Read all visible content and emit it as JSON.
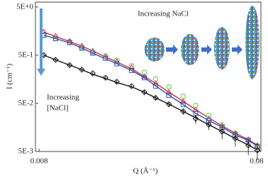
{
  "chart_data": {
    "type": "scatter",
    "log_x": true,
    "log_y": true,
    "y_label": "I (cm⁻¹)",
    "x_label": "Q (Å⁻¹)",
    "annotations": {
      "top": "Increasing NaCl",
      "left": [
        "Increasing",
        "[NaCl]"
      ]
    },
    "xlim": [
      0.0077,
      0.081
    ],
    "ylim": [
      0.005,
      6.3
    ],
    "xticks": [
      0.008,
      0.08
    ],
    "yticks": [
      {
        "value": 5,
        "label": "5E+0"
      },
      {
        "value": 0.5,
        "label": "5E-1"
      },
      {
        "value": 0.05,
        "label": "5E-2"
      },
      {
        "value": 0.005,
        "label": "5E-3"
      }
    ],
    "x": [
      0.0084,
      0.0095,
      0.011,
      0.0125,
      0.014,
      0.016,
      0.018,
      0.021,
      0.024,
      0.027,
      0.031,
      0.036,
      0.041,
      0.047,
      0.054,
      0.062,
      0.071,
      0.078
    ],
    "series": [
      {
        "color": "#d62b2b",
        "marker": "triangle",
        "values": [
          1.53,
          1.25,
          0.98,
          0.78,
          0.61,
          0.47,
          0.37,
          0.28,
          0.18,
          0.13,
          0.085,
          0.055,
          0.037,
          0.024,
          0.017,
          0.012,
          0.0089,
          0.0067
        ]
      },
      {
        "color": "#5cc84a",
        "marker": "circle",
        "values": [
          1.3,
          1.1,
          0.9,
          0.72,
          0.58,
          0.48,
          0.39,
          0.3,
          0.22,
          0.16,
          0.11,
          0.07,
          0.045,
          0.028,
          0.018,
          0.012,
          0.0085,
          0.006
        ]
      },
      {
        "color": "#2b4fc8",
        "marker": "square",
        "values": [
          1.29,
          1.1,
          0.92,
          0.7,
          0.55,
          0.43,
          0.33,
          0.24,
          0.17,
          0.114,
          0.073,
          0.047,
          0.031,
          0.022,
          0.016,
          0.011,
          0.0086,
          0.0064
        ]
      },
      {
        "color": "#111111",
        "marker": "diamond",
        "values": [
          0.5,
          0.4,
          0.31,
          0.25,
          0.21,
          0.17,
          0.14,
          0.114,
          0.085,
          0.065,
          0.048,
          0.034,
          0.024,
          0.018,
          0.013,
          0.0093,
          0.0067,
          0.0053
        ],
        "errors": [
          0.03,
          0.025,
          0.02,
          0.015,
          0.013,
          0.011,
          0.01,
          0.008,
          0.007,
          0.006,
          0.005,
          0.005,
          0.005,
          0.004,
          0.004,
          0.003,
          0.0025,
          0.002
        ]
      }
    ],
    "fits": [
      {
        "color": "#d62b2b",
        "values": [
          1.5,
          1.22,
          0.96,
          0.77,
          0.61,
          0.46,
          0.36,
          0.26,
          0.18,
          0.13,
          0.085,
          0.055,
          0.037,
          0.025,
          0.017,
          0.012,
          0.0088,
          0.0068
        ]
      },
      {
        "color": "#2b4fc8",
        "values": [
          1.3,
          1.1,
          0.9,
          0.7,
          0.55,
          0.42,
          0.33,
          0.24,
          0.17,
          0.115,
          0.074,
          0.047,
          0.031,
          0.022,
          0.016,
          0.011,
          0.0085,
          0.0065
        ]
      },
      {
        "color": "#111111",
        "values": [
          0.5,
          0.4,
          0.31,
          0.25,
          0.2,
          0.165,
          0.135,
          0.11,
          0.085,
          0.065,
          0.048,
          0.034,
          0.025,
          0.018,
          0.013,
          0.0093,
          0.0068,
          0.0054
        ]
      }
    ]
  }
}
